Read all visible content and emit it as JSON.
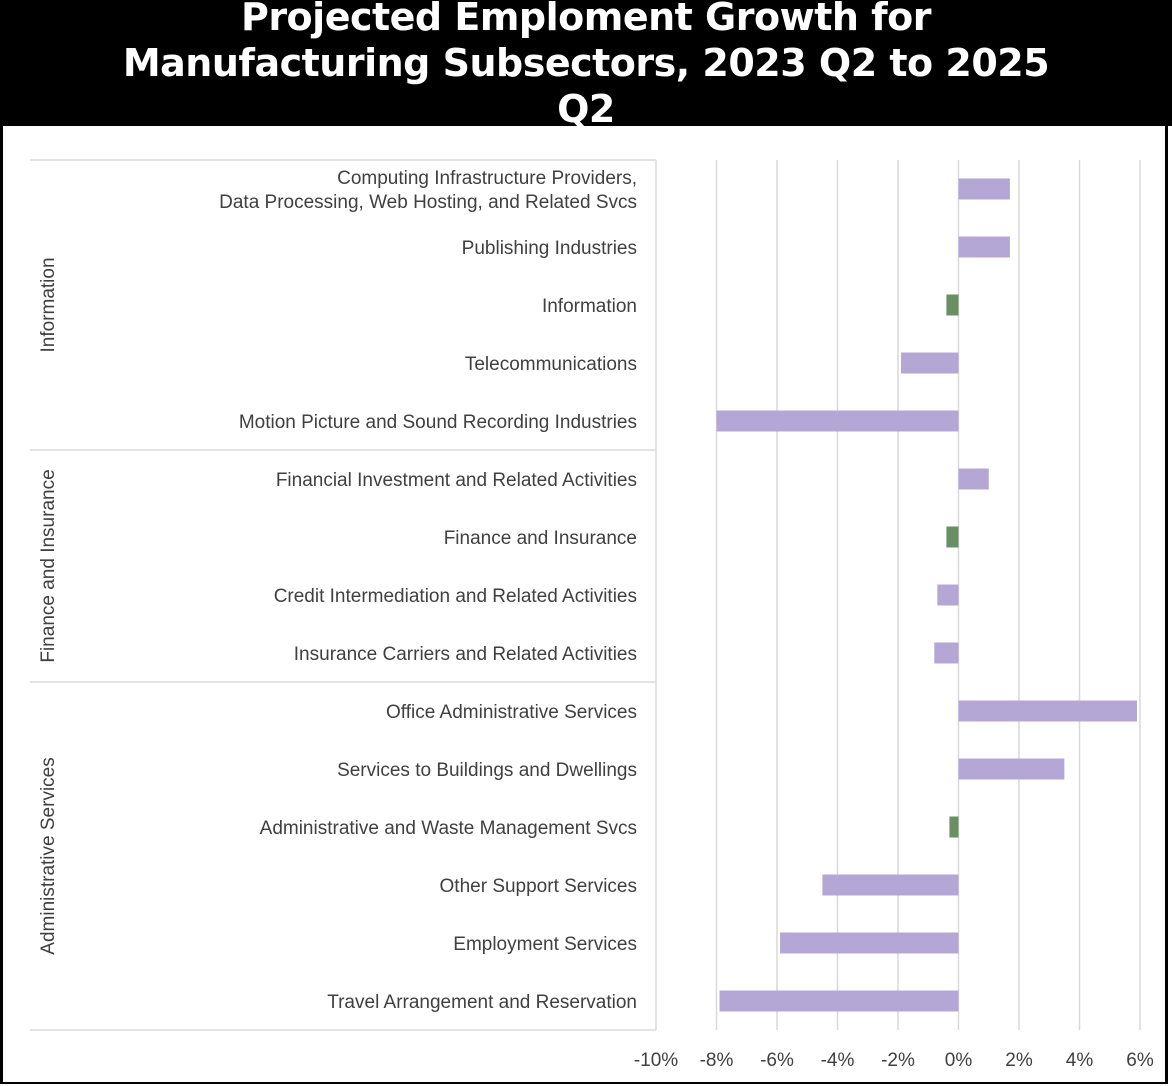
{
  "title": "Projected Emploment Growth for Manufacturing Subsectors, 2023 Q2 to 2025 Q2",
  "chart_data": {
    "type": "bar",
    "orientation": "horizontal",
    "title": "Projected Emploment Growth for Manufacturing Subsectors, 2023 Q2 to 2025 Q2",
    "xlim": [
      -10,
      6
    ],
    "xticks": [
      -10,
      -8,
      -6,
      -4,
      -2,
      0,
      2,
      4,
      6
    ],
    "xtick_labels": [
      "-10%",
      "-8%",
      "-6%",
      "-4%",
      "-2%",
      "0%",
      "2%",
      "4%",
      "6%"
    ],
    "grid": "vertical",
    "colors": {
      "subsector": "#b4a7d6",
      "sector_total": "#6a8f62"
    },
    "groups": [
      {
        "name": "Information",
        "items": [
          {
            "label": [
              "Computing Infrastructure Providers,",
              "Data Processing, Web Hosting, and Related Svcs"
            ],
            "value": 1.7,
            "kind": "subsector"
          },
          {
            "label": [
              "Publishing Industries"
            ],
            "value": 1.7,
            "kind": "subsector"
          },
          {
            "label": [
              "Information"
            ],
            "value": -0.4,
            "kind": "sector_total"
          },
          {
            "label": [
              "Telecommunications"
            ],
            "value": -1.9,
            "kind": "subsector"
          },
          {
            "label": [
              "Motion Picture and Sound Recording Industries"
            ],
            "value": -8.0,
            "kind": "subsector"
          }
        ]
      },
      {
        "name": "Finance and Insurance",
        "items": [
          {
            "label": [
              "Financial Investment and Related Activities"
            ],
            "value": 1.0,
            "kind": "subsector"
          },
          {
            "label": [
              "Finance and Insurance"
            ],
            "value": -0.4,
            "kind": "sector_total"
          },
          {
            "label": [
              "Credit Intermediation and Related Activities"
            ],
            "value": -0.7,
            "kind": "subsector"
          },
          {
            "label": [
              "Insurance Carriers and Related Activities"
            ],
            "value": -0.8,
            "kind": "subsector"
          }
        ]
      },
      {
        "name": "Administrative Services",
        "items": [
          {
            "label": [
              "Office Administrative Services"
            ],
            "value": 5.9,
            "kind": "subsector"
          },
          {
            "label": [
              "Services to Buildings and Dwellings"
            ],
            "value": 3.5,
            "kind": "subsector"
          },
          {
            "label": [
              "Administrative and Waste Management Svcs"
            ],
            "value": -0.3,
            "kind": "sector_total"
          },
          {
            "label": [
              "Other Support Services"
            ],
            "value": -4.5,
            "kind": "subsector"
          },
          {
            "label": [
              "Employment Services"
            ],
            "value": -5.9,
            "kind": "subsector"
          },
          {
            "label": [
              "Travel Arrangement and Reservation"
            ],
            "value": -7.9,
            "kind": "subsector"
          }
        ]
      }
    ]
  }
}
